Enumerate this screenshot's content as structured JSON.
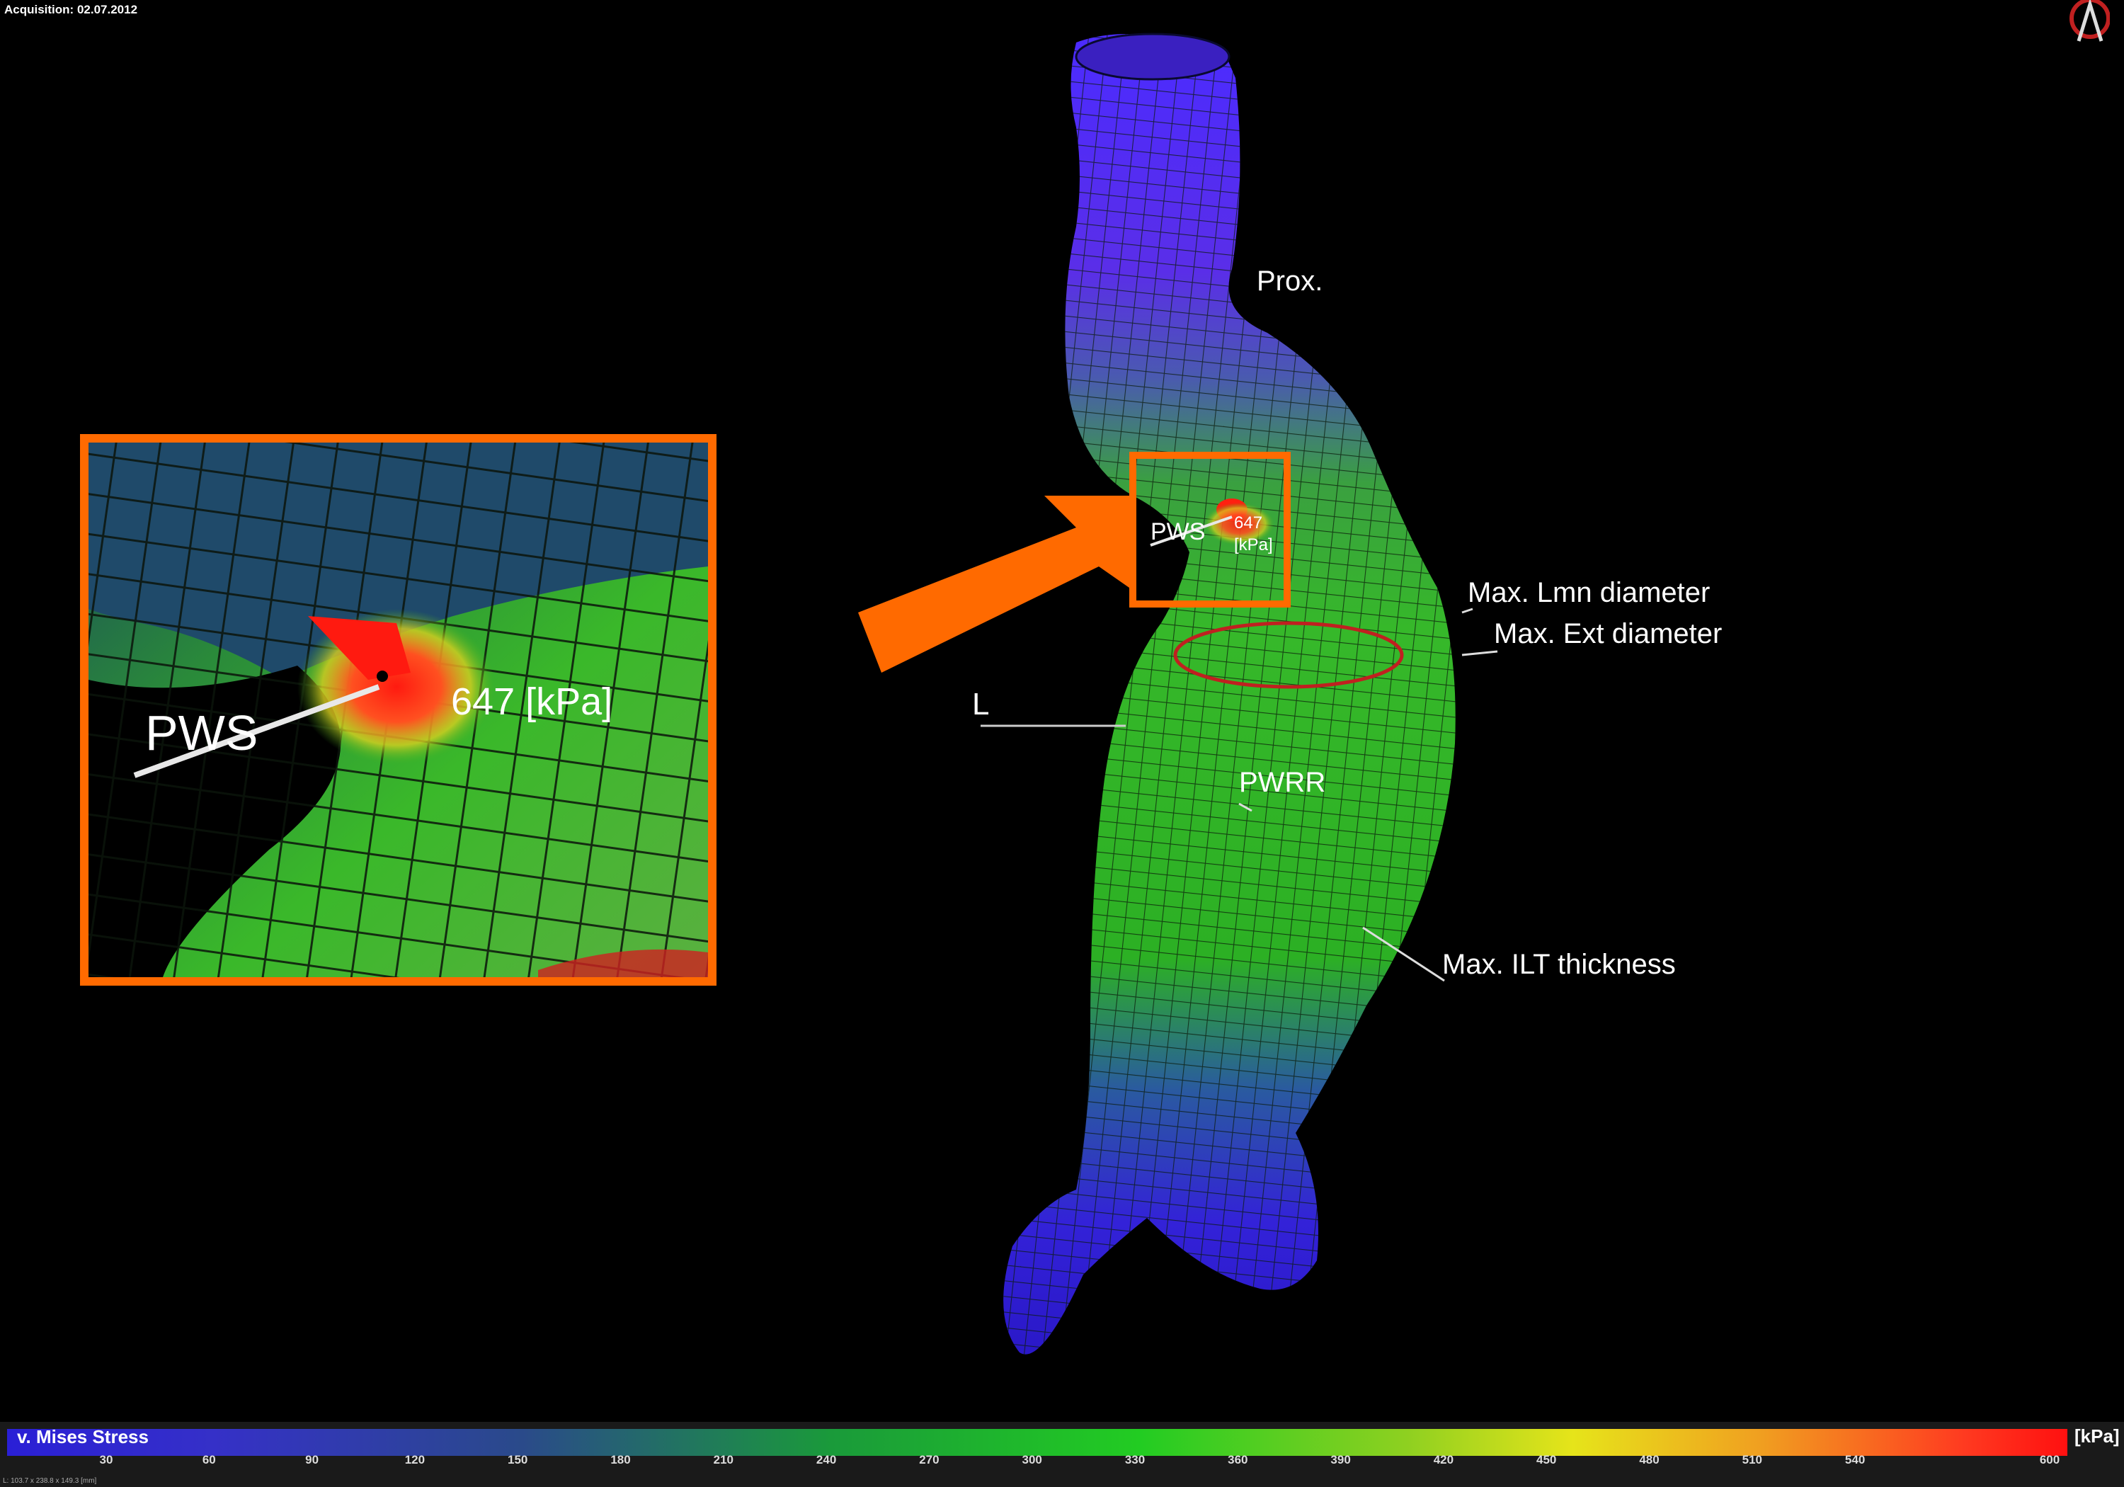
{
  "header": {
    "acquisition": "Acquisition: 02.07.2012"
  },
  "labels": {
    "prox": "Prox.",
    "pws_main": "PWS",
    "stress_value_1": "647",
    "stress_value_2": "[kPa]",
    "max_lmn_diameter": "Max. Lmn diameter",
    "max_ext_diameter": "Max. Ext diameter",
    "l": "L",
    "pwrr": "PWRR",
    "max_ilt_thickness": "Max. ILT thickness"
  },
  "inset": {
    "pws_label": "PWS",
    "stress_label": "647 [kPa]"
  },
  "colorbar": {
    "title": "v. Mises Stress",
    "unit": "[kPa]",
    "ticks": [
      "30",
      "60",
      "90",
      "120",
      "150",
      "180",
      "210",
      "240",
      "270",
      "300",
      "330",
      "360",
      "390",
      "420",
      "450",
      "480",
      "510",
      "540",
      "600"
    ],
    "footer": "L: 103.7 x 238.8 x 149.3 [mm]"
  },
  "colors": {
    "highlight_orange": "#ff6a00",
    "stress_low": "#2a1fd6",
    "stress_mid": "#22cc22",
    "stress_high": "#ff1010"
  }
}
